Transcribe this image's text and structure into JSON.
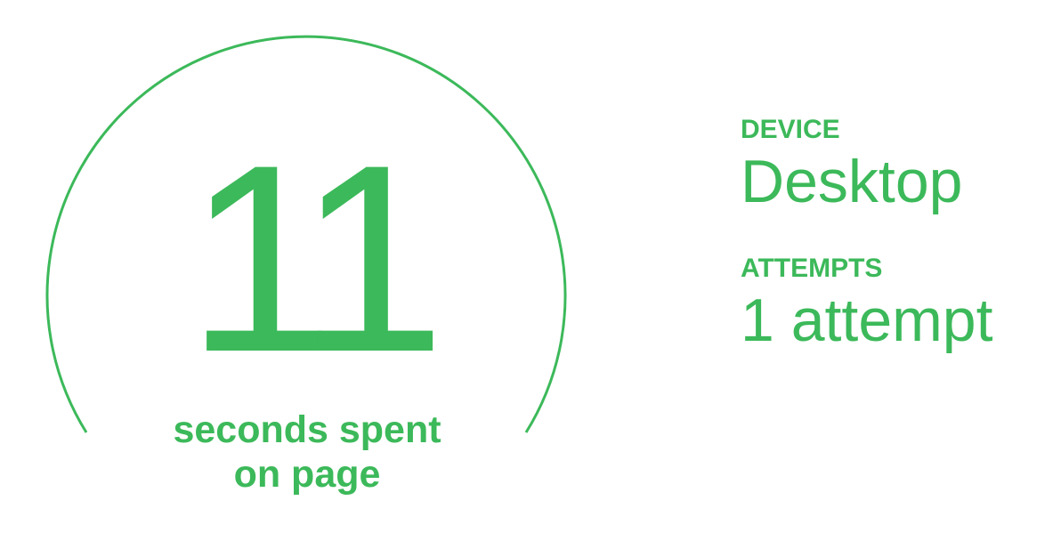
{
  "accent_color": "#3cb95a",
  "time_on_page": {
    "value": "11",
    "caption_line1": "seconds spent",
    "caption_line2": "on page"
  },
  "stats": {
    "device": {
      "label": "DEVICE",
      "value": "Desktop"
    },
    "attempts": {
      "label": "ATTEMPTS",
      "value": "1 attempt"
    }
  }
}
